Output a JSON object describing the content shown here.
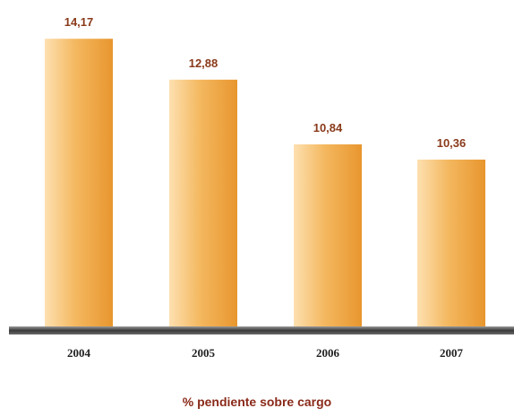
{
  "chart_data": {
    "type": "bar",
    "categories": [
      "2004",
      "2005",
      "2006",
      "2007"
    ],
    "values": [
      14.17,
      12.88,
      10.84,
      10.36
    ],
    "value_labels": [
      "14,17",
      "12,88",
      "10,84",
      "10,36"
    ],
    "title": "",
    "xlabel": "% pendiente sobre cargo",
    "ylabel": "",
    "ylim": [
      5.1,
      14.6
    ],
    "grid": false,
    "legend": "none",
    "colors": {
      "bar_light": "#fde0b0",
      "bar_mid": "#f4b860",
      "bar_dark": "#e8962e",
      "value_text": "#8a3a1a",
      "category_text": "#222222",
      "caption_text": "#8a2a1a",
      "baseline": "#3a3a3a"
    }
  }
}
